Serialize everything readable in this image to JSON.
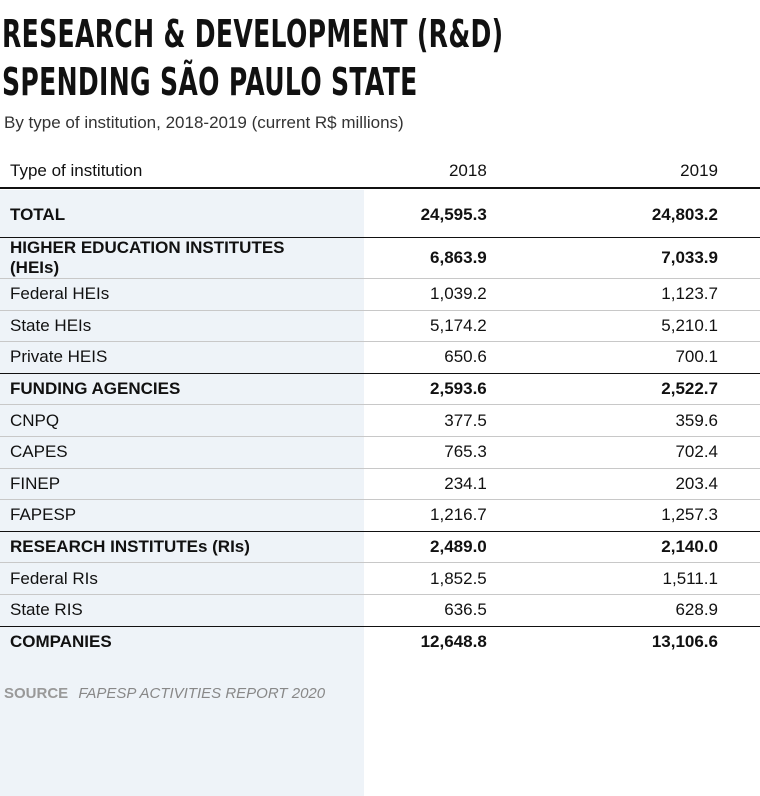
{
  "title": {
    "line1": "RESEARCH & DEVELOPMENT (R&D)",
    "line2": "SPENDING SÃO PAULO STATE"
  },
  "subtitle": "By type of institution, 2018-2019 (current R$ millions)",
  "source": {
    "label": "SOURCE",
    "text": "FAPESP ACTIVITIES REPORT 2020"
  },
  "chart_data": {
    "type": "table",
    "columns": [
      "Type of institution",
      "2018",
      "2019"
    ],
    "rows": [
      {
        "label": "TOTAL",
        "v2018": "24,595.3",
        "v2019": "24,803.2",
        "bold": true
      },
      {
        "label": "HIGHER EDUCATION INSTITUTES (HEIs)",
        "v2018": "6,863.9",
        "v2019": "7,033.9",
        "bold": true
      },
      {
        "label": "Federal HEIs",
        "v2018": "1,039.2",
        "v2019": "1,123.7",
        "bold": false
      },
      {
        "label": "State HEIs",
        "v2018": "5,174.2",
        "v2019": "5,210.1",
        "bold": false
      },
      {
        "label": "Private HEIS",
        "v2018": "650.6",
        "v2019": "700.1",
        "bold": false
      },
      {
        "label": "FUNDING AGENCIES",
        "v2018": "2,593.6",
        "v2019": "2,522.7",
        "bold": true
      },
      {
        "label": "CNPQ",
        "v2018": "377.5",
        "v2019": "359.6",
        "bold": false
      },
      {
        "label": "CAPES",
        "v2018": "765.3",
        "v2019": "702.4",
        "bold": false
      },
      {
        "label": "FINEP",
        "v2018": "234.1",
        "v2019": "203.4",
        "bold": false
      },
      {
        "label": "FAPESP",
        "v2018": "1,216.7",
        "v2019": "1,257.3",
        "bold": false
      },
      {
        "label": "RESEARCH INSTITUTEs (RIs)",
        "v2018": "2,489.0",
        "v2019": "2,140.0",
        "bold": true
      },
      {
        "label": "Federal RIs",
        "v2018": "1,852.5",
        "v2019": "1,511.1",
        "bold": false
      },
      {
        "label": "State RIS",
        "v2018": "636.5",
        "v2019": "628.9",
        "bold": false
      },
      {
        "label": "COMPANIES",
        "v2018": "12,648.8",
        "v2019": "13,106.6",
        "bold": true
      }
    ]
  }
}
